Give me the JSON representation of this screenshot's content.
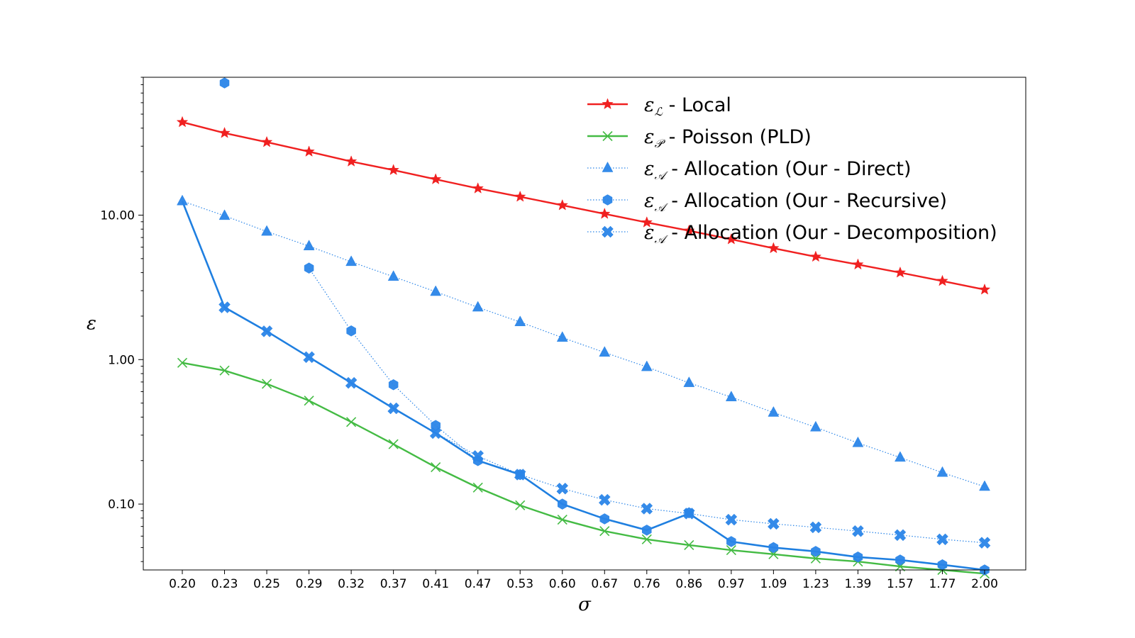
{
  "chart_data": {
    "type": "line",
    "xlabel": "σ",
    "ylabel": "ε",
    "yscale": "log",
    "ylim": [
      0.035,
      90
    ],
    "categories": [
      "0.20",
      "0.23",
      "0.25",
      "0.29",
      "0.32",
      "0.37",
      "0.41",
      "0.47",
      "0.53",
      "0.60",
      "0.67",
      "0.76",
      "0.86",
      "0.97",
      "1.09",
      "1.23",
      "1.39",
      "1.57",
      "1.77",
      "2.00"
    ],
    "y_ticks": [
      {
        "value": 10,
        "label": "10.00"
      },
      {
        "value": 1,
        "label": "1.00"
      },
      {
        "value": 0.1,
        "label": "0.10"
      }
    ],
    "legend_position": "top-right",
    "series": [
      {
        "name": "Local",
        "symbol": "ε",
        "sub": "ℒ",
        "color": "#f02020",
        "linestyle": "solid",
        "marker": "star",
        "values": [
          44,
          37,
          32,
          27.5,
          23.5,
          20.5,
          17.7,
          15.3,
          13.4,
          11.7,
          10.2,
          8.9,
          7.8,
          6.8,
          5.9,
          5.15,
          4.55,
          4.0,
          3.5,
          3.05
        ]
      },
      {
        "name": "Poisson (PLD)",
        "symbol": "ε",
        "sub": "𝒫",
        "color": "#44bb44",
        "linestyle": "solid",
        "marker": "x",
        "values": [
          0.95,
          0.84,
          0.68,
          0.52,
          0.37,
          0.26,
          0.18,
          0.13,
          0.098,
          0.078,
          0.065,
          0.057,
          0.052,
          0.048,
          0.045,
          0.042,
          0.04,
          0.037,
          0.035,
          0.033
        ]
      },
      {
        "name": "Allocation (Our - Direct)",
        "symbol": "ε",
        "sub": "𝒜",
        "color": "#2a85e8",
        "linestyle": "dotted",
        "marker": "triangle",
        "values": [
          12.5,
          9.9,
          7.7,
          6.1,
          4.75,
          3.75,
          2.95,
          2.3,
          1.82,
          1.42,
          1.12,
          0.89,
          0.69,
          0.55,
          0.43,
          0.34,
          0.265,
          0.21,
          0.165,
          0.132
        ]
      },
      {
        "name": "Allocation (Our - Recursive)",
        "symbol": "ε",
        "sub": "𝒜",
        "color": "#2a85e8",
        "linestyle": "dotted",
        "marker": "hexagon",
        "values": [
          null,
          85,
          null,
          4.3,
          1.58,
          0.67,
          0.35,
          0.2,
          0.16,
          0.1,
          0.079,
          0.066,
          0.087,
          0.055,
          0.05,
          0.047,
          0.043,
          0.041,
          0.038,
          0.035
        ]
      },
      {
        "name": "Allocation (Our - Decomposition)",
        "symbol": "ε",
        "sub": "𝒜",
        "color": "#2a85e8",
        "linestyle": "dotted",
        "marker": "xfilled",
        "values": [
          null,
          2.3,
          1.57,
          1.04,
          0.69,
          0.46,
          0.31,
          0.215,
          0.16,
          0.128,
          0.107,
          0.093,
          0.086,
          0.078,
          0.073,
          0.069,
          0.065,
          0.061,
          0.057,
          0.054
        ]
      }
    ],
    "min_line": {
      "color": "#1f7fe0",
      "linestyle": "solid",
      "values": [
        12.5,
        2.3,
        1.57,
        1.04,
        0.69,
        0.46,
        0.31,
        0.2,
        0.16,
        0.1,
        0.079,
        0.066,
        0.086,
        0.055,
        0.05,
        0.047,
        0.043,
        0.041,
        0.038,
        0.035
      ]
    }
  }
}
